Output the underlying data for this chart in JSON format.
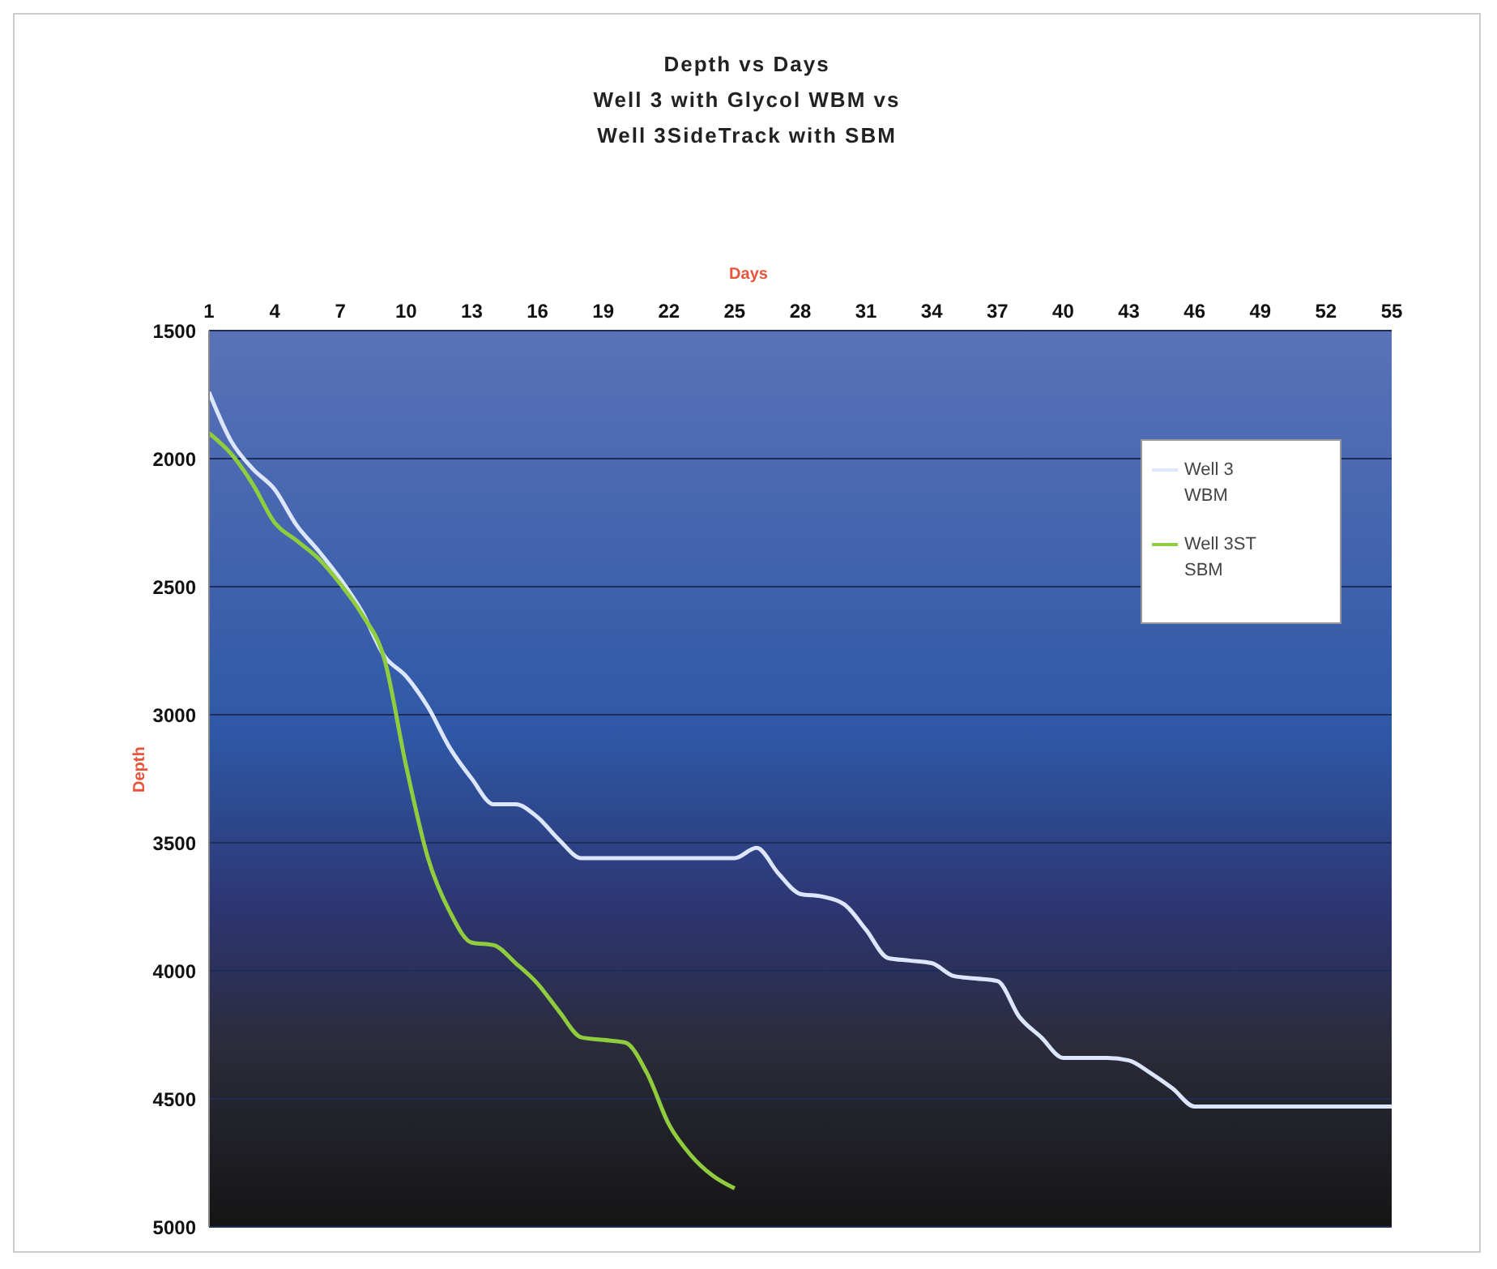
{
  "chart_data": {
    "type": "line",
    "title": "Depth vs Days\nWell 3 with Glycol WBM vs\nWell 3SideTrack with SBM",
    "xlabel": "Days",
    "ylabel": "Depth",
    "x": [
      1,
      2,
      3,
      4,
      5,
      6,
      7,
      8,
      9,
      10,
      11,
      12,
      13,
      14,
      15,
      16,
      17,
      18,
      19,
      20,
      21,
      22,
      23,
      24,
      25,
      26,
      27,
      28,
      29,
      30,
      31,
      32,
      33,
      34,
      35,
      36,
      37,
      38,
      39,
      40,
      41,
      42,
      43,
      44,
      45,
      46,
      47,
      48,
      49,
      50,
      51,
      52,
      53,
      54,
      55
    ],
    "xlim": [
      1,
      55
    ],
    "xticks": [
      1,
      4,
      7,
      10,
      13,
      16,
      19,
      22,
      25,
      28,
      31,
      34,
      37,
      40,
      43,
      46,
      49,
      52,
      55
    ],
    "ylim": [
      5000,
      1500
    ],
    "yticks": [
      1500,
      2000,
      2500,
      3000,
      3500,
      4000,
      4500,
      5000
    ],
    "grid": "y",
    "legend": "top right",
    "line_style": "solid",
    "marker": "none",
    "series": [
      {
        "name": "Well 3 WBM",
        "color": "#dce6ff",
        "values": [
          1740,
          1930,
          2040,
          2120,
          2260,
          2360,
          2470,
          2600,
          2770,
          2850,
          2970,
          3130,
          3250,
          3350,
          3350,
          3400,
          3490,
          3560,
          3560,
          3560,
          3560,
          3560,
          3560,
          3560,
          3560,
          3520,
          3620,
          3700,
          3710,
          3740,
          3840,
          3950,
          3960,
          3970,
          4020,
          4030,
          4040,
          4180,
          4260,
          4340,
          4340,
          4340,
          4350,
          4400,
          4460,
          4530,
          4530,
          4530,
          4530,
          4530,
          4530,
          4530,
          4530,
          4530,
          4530
        ]
      },
      {
        "name": "Well 3ST SBM",
        "color": "#8fcc3e",
        "values": [
          1900,
          1980,
          2100,
          2250,
          2320,
          2390,
          2490,
          2610,
          2780,
          3200,
          3560,
          3770,
          3890,
          3900,
          3970,
          4050,
          4160,
          4260,
          4270,
          4280,
          4400,
          4600,
          4720,
          4800,
          4850,
          null,
          null,
          null,
          null,
          null,
          null,
          null,
          null,
          null,
          null,
          null,
          null,
          null,
          null,
          null,
          null,
          null,
          null,
          null,
          null,
          null,
          null,
          null,
          null,
          null,
          null,
          null,
          null,
          null,
          null
        ]
      }
    ]
  }
}
